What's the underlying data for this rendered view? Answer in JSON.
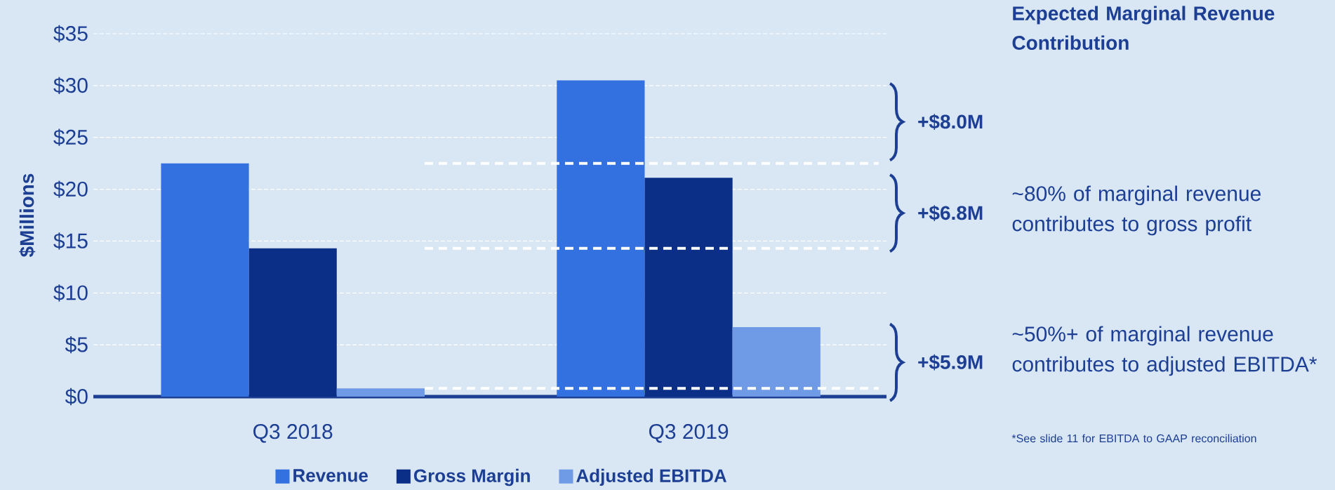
{
  "chart_data": {
    "type": "bar",
    "ylabel": "$Millions",
    "categories": [
      "Q3 2018",
      "Q3 2019"
    ],
    "series": [
      {
        "name": "Revenue",
        "color": "#3370e0",
        "values": [
          22.5,
          30.5
        ]
      },
      {
        "name": "Gross Margin",
        "color": "#0b2f86",
        "values": [
          14.3,
          21.1
        ]
      },
      {
        "name": "Adjusted EBITDA",
        "color": "#6f9be6",
        "values": [
          0.8,
          6.7
        ]
      }
    ],
    "ylim": [
      0,
      35
    ],
    "yticks": [
      {
        "value": 0,
        "label": "$0"
      },
      {
        "value": 5,
        "label": "$5"
      },
      {
        "value": 10,
        "label": "$10"
      },
      {
        "value": 15,
        "label": "$15"
      },
      {
        "value": 20,
        "label": "$20"
      },
      {
        "value": 25,
        "label": "$25"
      },
      {
        "value": 30,
        "label": "$30"
      },
      {
        "value": 35,
        "label": "$35"
      }
    ],
    "grid": "y",
    "legend": "bottom",
    "ref_lines": [
      {
        "axis": "y",
        "value": 22.5,
        "color": "#ffffff",
        "line_style": "dashed"
      },
      {
        "axis": "y",
        "value": 14.3,
        "color": "#ffffff",
        "line_style": "dashed"
      },
      {
        "axis": "y",
        "value": 0.8,
        "color": "#ffffff",
        "line_style": "dashed"
      }
    ],
    "annotations": [
      "Expected Marginal Revenue Contribution",
      "+$8.0M",
      "+$6.8M",
      "+$5.9M",
      "~80% of marginal revenue contributes to gross profit",
      "~50%+ of marginal revenue contributes to adjusted EBITDA*",
      "*See slide 11 for EBITDA to GAAP reconciliation"
    ]
  }
}
